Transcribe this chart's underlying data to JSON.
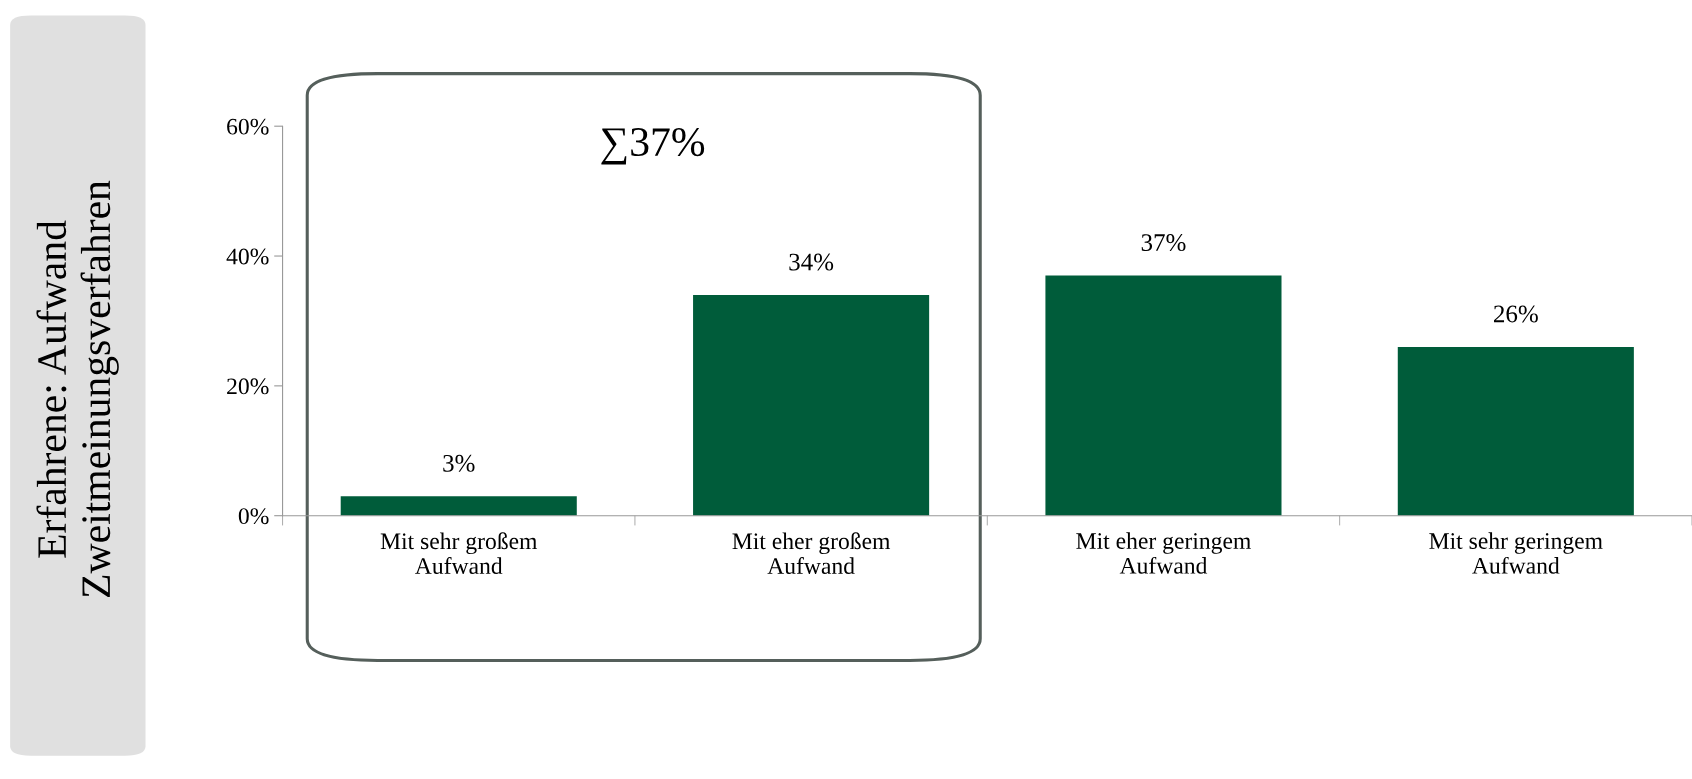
{
  "chart_data": {
    "type": "bar",
    "title": "Erfahrene: Aufwand\nZweitmeinungsverfahren",
    "categories": [
      "Mit sehr großem\nAufwand",
      "Mit eher großem\nAufwand",
      "Mit eher geringem\nAufwand",
      "Mit sehr geringem\nAufwand"
    ],
    "values": [
      3,
      34,
      37,
      26
    ],
    "color": "#005c3a",
    "value_labels": [
      "3%",
      "34%",
      "37%",
      "26%"
    ],
    "ylim": [
      0,
      60
    ],
    "yticks": [
      {
        "value": 0,
        "label": "0%"
      },
      {
        "value": 20,
        "label": "20%"
      },
      {
        "value": 40,
        "label": "40%"
      },
      {
        "value": 60,
        "label": "60%"
      }
    ],
    "grid": false,
    "annotations": [
      "∑37%"
    ]
  }
}
